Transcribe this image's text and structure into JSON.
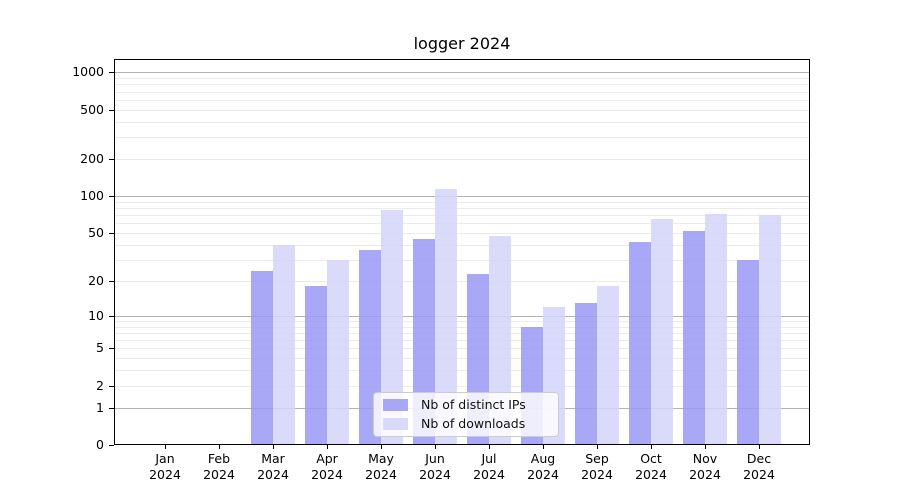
{
  "chart_data": {
    "type": "bar",
    "title": "logger 2024",
    "year": "2024",
    "categories": [
      "Jan",
      "Feb",
      "Mar",
      "Apr",
      "May",
      "Jun",
      "Jul",
      "Aug",
      "Sep",
      "Oct",
      "Nov",
      "Dec"
    ],
    "series": [
      {
        "name": "Nb of distinct IPs",
        "color": "#9999f4",
        "values": [
          0,
          0,
          24,
          18,
          36,
          45,
          23,
          8,
          13,
          42,
          52,
          30
        ]
      },
      {
        "name": "Nb of downloads",
        "color": "#d4d4fa",
        "values": [
          0,
          0,
          40,
          30,
          77,
          115,
          47,
          12,
          18,
          65,
          72,
          70
        ]
      }
    ],
    "y_ticks": [
      0,
      1,
      2,
      5,
      10,
      20,
      50,
      100,
      200,
      500,
      1000
    ],
    "y_major_gridlines": [
      1,
      10,
      100,
      1000
    ],
    "y_minor_gridlines": [
      2,
      3,
      4,
      5,
      6,
      7,
      8,
      9,
      20,
      30,
      40,
      50,
      60,
      70,
      80,
      90,
      200,
      300,
      400,
      500,
      600,
      700,
      800,
      900
    ],
    "y_scale": "log1p",
    "ylim": [
      0,
      1280
    ],
    "xlabel": "",
    "ylabel": "",
    "grid": true,
    "bar_alpha": 0.85,
    "legend_position": "lower-center-inside",
    "axis_color": "#000000",
    "major_grid_color": "#b3b3b3",
    "minor_grid_color": "#ebebeb"
  }
}
